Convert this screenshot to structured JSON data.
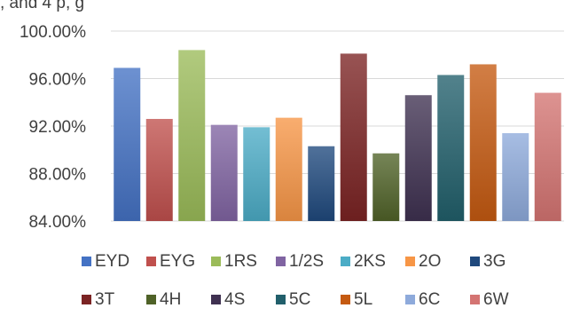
{
  "caption_fragment": ", and 4 p, g",
  "chart_data": {
    "type": "bar",
    "title": "",
    "xlabel": "",
    "ylabel": "",
    "ylim": [
      84,
      100
    ],
    "yticks": [
      84,
      88,
      92,
      96,
      100
    ],
    "ytick_labels": [
      "84.00%",
      "88.00%",
      "92.00%",
      "96.00%",
      "100.00%"
    ],
    "grid": true,
    "legend_position": "bottom",
    "series": [
      {
        "name": "EYD",
        "value": 96.9,
        "color": "#4472c4"
      },
      {
        "name": "EYG",
        "value": 92.6,
        "color": "#c0504d"
      },
      {
        "name": "1RS",
        "value": 98.4,
        "color": "#9bbb59"
      },
      {
        "name": "1/2S",
        "value": 92.1,
        "color": "#8064a2"
      },
      {
        "name": "2KS",
        "value": 91.9,
        "color": "#4bacc6"
      },
      {
        "name": "2O",
        "value": 92.7,
        "color": "#f79646"
      },
      {
        "name": "3G",
        "value": 90.3,
        "color": "#1f497d"
      },
      {
        "name": "3T",
        "value": 98.1,
        "color": "#7b2323"
      },
      {
        "name": "4H",
        "value": 89.7,
        "color": "#4f6228"
      },
      {
        "name": "4S",
        "value": 94.6,
        "color": "#3f3151"
      },
      {
        "name": "5C",
        "value": 96.3,
        "color": "#215f6b"
      },
      {
        "name": "5L",
        "value": 97.2,
        "color": "#c55a11"
      },
      {
        "name": "6C",
        "value": 91.4,
        "color": "#8eaadb"
      },
      {
        "name": "6W",
        "value": 94.8,
        "color": "#d47472"
      }
    ]
  }
}
